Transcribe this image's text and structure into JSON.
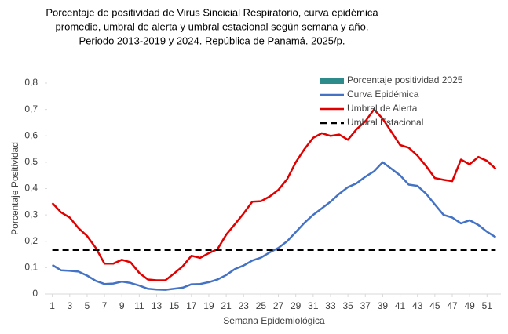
{
  "chart_data": {
    "type": "line",
    "title": [
      "Porcentaje de positividad de Virus Sincicial Respiratorio, curva epidémica",
      "promedio, umbral de alerta  y umbral estacional según semana y año.",
      "Periodo 2013-2019 y 2024.  República de Panamá. 2025/p."
    ],
    "x_label": "Semana Epidemiológica",
    "y_label": "Porcentaje Positividad",
    "x": [
      1,
      2,
      3,
      4,
      5,
      6,
      7,
      8,
      9,
      10,
      11,
      12,
      13,
      14,
      15,
      16,
      17,
      18,
      19,
      20,
      21,
      22,
      23,
      24,
      25,
      26,
      27,
      28,
      29,
      30,
      31,
      32,
      33,
      34,
      35,
      36,
      37,
      38,
      39,
      40,
      41,
      42,
      43,
      44,
      45,
      46,
      47,
      48,
      49,
      50,
      51,
      52
    ],
    "xlim": [
      0.4,
      52.6
    ],
    "xticks": [
      1,
      3,
      5,
      7,
      9,
      11,
      13,
      15,
      17,
      19,
      21,
      23,
      25,
      27,
      29,
      31,
      33,
      35,
      37,
      39,
      41,
      43,
      45,
      47,
      49,
      51
    ],
    "ylim": [
      0,
      0.8
    ],
    "yticks": [
      0,
      {
        "value": 0.1,
        "label": "0,1"
      },
      {
        "value": 0.2,
        "label": "0,2"
      },
      {
        "value": 0.3,
        "label": "0,3"
      },
      {
        "value": 0.4,
        "label": "0,4"
      },
      {
        "value": 0.5,
        "label": "0,5"
      },
      {
        "value": 0.6,
        "label": "0,6"
      },
      {
        "value": 0.7,
        "label": "0,7"
      },
      {
        "value": 0.8,
        "label": "0,8"
      }
    ],
    "series": [
      {
        "name": "Porcentaje positividad 2025",
        "type": "bar",
        "color": "#2e8b8b",
        "values": [
          null,
          null,
          null,
          null,
          null,
          null,
          null,
          null,
          null,
          null,
          null,
          null,
          null,
          null,
          null,
          null,
          null,
          null,
          null,
          null,
          null,
          null,
          null,
          null,
          null,
          null,
          null,
          null,
          null,
          null,
          null,
          null,
          null,
          null,
          null,
          null,
          null,
          null,
          null,
          null,
          null,
          null,
          null,
          null,
          null,
          null,
          null,
          null,
          null,
          null,
          null,
          null
        ]
      },
      {
        "name": "Curva Epidémica",
        "type": "line",
        "color": "#4472c4",
        "values": [
          0.11,
          0.09,
          0.088,
          0.085,
          0.07,
          0.05,
          0.038,
          0.04,
          0.047,
          0.042,
          0.032,
          0.02,
          0.017,
          0.016,
          0.02,
          0.024,
          0.037,
          0.038,
          0.045,
          0.055,
          0.072,
          0.095,
          0.108,
          0.127,
          0.138,
          0.158,
          0.175,
          0.2,
          0.235,
          0.27,
          0.3,
          0.325,
          0.35,
          0.38,
          0.405,
          0.42,
          0.445,
          0.465,
          0.5,
          0.475,
          0.45,
          0.415,
          0.41,
          0.38,
          0.34,
          0.3,
          0.29,
          0.268,
          0.28,
          0.262,
          0.236,
          0.215
        ]
      },
      {
        "name": "Umbral de Alerta",
        "type": "line",
        "color": "#e00000",
        "values": [
          0.345,
          0.31,
          0.29,
          0.25,
          0.22,
          0.175,
          0.115,
          0.115,
          0.13,
          0.12,
          0.08,
          0.055,
          0.052,
          0.052,
          0.078,
          0.105,
          0.145,
          0.137,
          0.155,
          0.17,
          0.225,
          0.265,
          0.305,
          0.35,
          0.352,
          0.37,
          0.395,
          0.435,
          0.5,
          0.55,
          0.592,
          0.61,
          0.6,
          0.605,
          0.585,
          0.625,
          0.655,
          0.7,
          0.665,
          0.615,
          0.565,
          0.555,
          0.525,
          0.485,
          0.44,
          0.433,
          0.428,
          0.51,
          0.492,
          0.52,
          0.505,
          0.475
        ]
      },
      {
        "name": "Umbral Estacional",
        "type": "line",
        "dashed": true,
        "color": "#000000",
        "values": [
          0.167,
          0.167,
          0.167,
          0.167,
          0.167,
          0.167,
          0.167,
          0.167,
          0.167,
          0.167,
          0.167,
          0.167,
          0.167,
          0.167,
          0.167,
          0.167,
          0.167,
          0.167,
          0.167,
          0.167,
          0.167,
          0.167,
          0.167,
          0.167,
          0.167,
          0.167,
          0.167,
          0.167,
          0.167,
          0.167,
          0.167,
          0.167,
          0.167,
          0.167,
          0.167,
          0.167,
          0.167,
          0.167,
          0.167,
          0.167,
          0.167,
          0.167,
          0.167,
          0.167,
          0.167,
          0.167,
          0.167,
          0.167,
          0.167,
          0.167,
          0.167,
          0.167
        ]
      }
    ],
    "legend_position": "top-right"
  }
}
